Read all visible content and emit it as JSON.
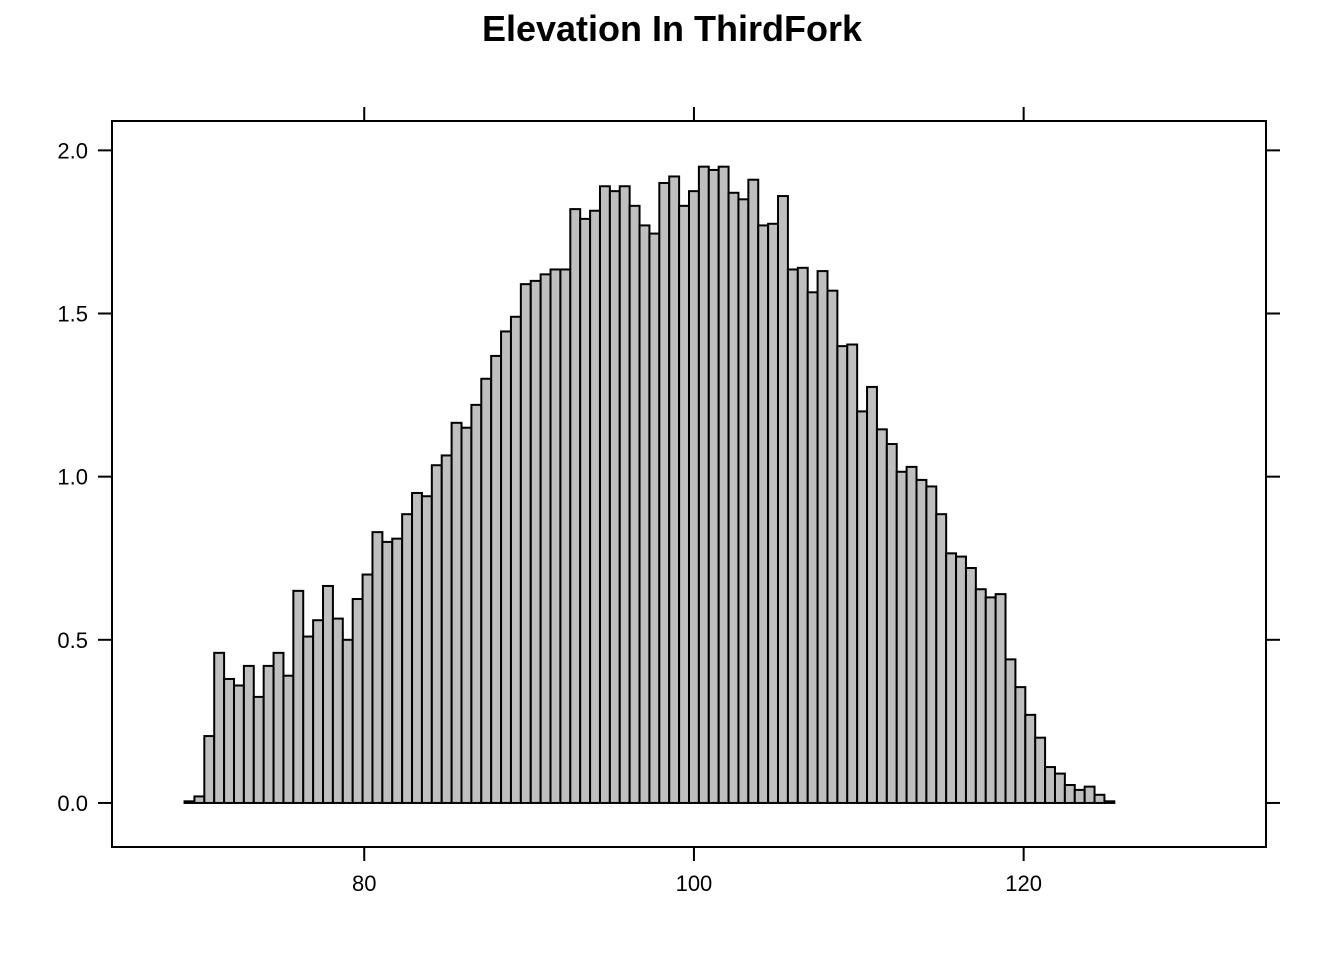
{
  "chart_data": {
    "type": "bar",
    "title": "Elevation In ThirdFork",
    "xlabel": "",
    "ylabel": "",
    "xlim": [
      64.7,
      134.7
    ],
    "ylim": [
      -0.135,
      2.09
    ],
    "x_ticks": [
      80,
      100,
      120
    ],
    "y_ticks": [
      0.0,
      0.5,
      1.0,
      1.5,
      2.0
    ],
    "x_tick_labels": [
      "80",
      "100",
      "120"
    ],
    "y_tick_labels": [
      "0.0",
      "0.5",
      "1.0",
      "1.5",
      "2.0"
    ],
    "bin_start": 65.5,
    "bin_width": 0.6,
    "values": [
      0,
      0,
      0,
      0,
      0,
      0,
      0.005,
      0.02,
      0.205,
      0.46,
      0.38,
      0.36,
      0.42,
      0.325,
      0.42,
      0.46,
      0.39,
      0.65,
      0.51,
      0.56,
      0.665,
      0.565,
      0.5,
      0.625,
      0.7,
      0.83,
      0.8,
      0.81,
      0.885,
      0.95,
      0.94,
      1.035,
      1.065,
      1.165,
      1.15,
      1.22,
      1.3,
      1.37,
      1.445,
      1.49,
      1.59,
      1.6,
      1.62,
      1.635,
      1.635,
      1.82,
      1.79,
      1.815,
      1.89,
      1.875,
      1.89,
      1.83,
      1.77,
      1.745,
      1.9,
      1.92,
      1.83,
      1.875,
      1.95,
      1.94,
      1.95,
      1.87,
      1.85,
      1.91,
      1.77,
      1.775,
      1.86,
      1.635,
      1.64,
      1.565,
      1.63,
      1.57,
      1.4,
      1.405,
      1.2,
      1.275,
      1.145,
      1.1,
      1.015,
      1.03,
      0.99,
      0.97,
      0.885,
      0.765,
      0.755,
      0.72,
      0.655,
      0.63,
      0.64,
      0.44,
      0.355,
      0.27,
      0.2,
      0.11,
      0.09,
      0.055,
      0.04,
      0.05,
      0.025,
      0.005,
      0,
      0,
      0,
      0,
      0,
      0,
      0,
      0
    ],
    "bar_color": "#bfbfbf",
    "grid": false,
    "legend": "none"
  }
}
